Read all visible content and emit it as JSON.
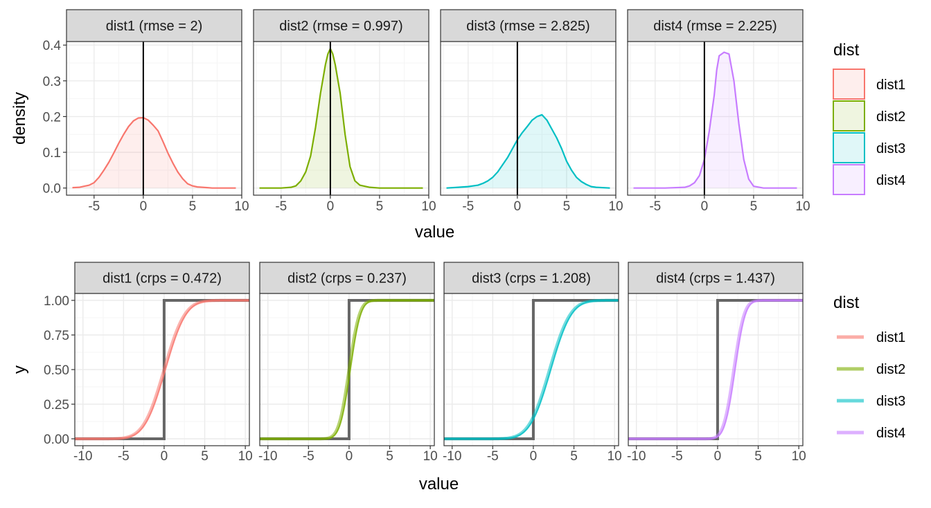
{
  "colors": {
    "dist1": "#F8766D",
    "dist2": "#7CAE00",
    "dist3": "#00BFC4",
    "dist4": "#C77CFF",
    "strip_fill": "#D9D9D9",
    "grid_major": "#EBEBEB",
    "grid_minor": "#F5F5F5",
    "panel_border": "#333333",
    "step": "#666666"
  },
  "chart_data": [
    {
      "type": "area",
      "name": "density-row",
      "title": "",
      "xlabel": "value",
      "ylabel": "density",
      "xlim": [
        -7.8,
        10
      ],
      "ylim": [
        -0.02,
        0.41
      ],
      "x_ticks": [
        -5,
        0,
        5,
        10
      ],
      "x_tick_labels": [
        "-5",
        "0",
        "5",
        "10"
      ],
      "y_ticks": [
        0.0,
        0.1,
        0.2,
        0.3,
        0.4
      ],
      "y_tick_labels": [
        "0.0",
        "0.1",
        "0.2",
        "0.3",
        "0.4"
      ],
      "reference_vline": 0,
      "legend": {
        "title": "dist",
        "position": "right",
        "entries": [
          "dist1",
          "dist2",
          "dist3",
          "dist4"
        ]
      },
      "panels": [
        {
          "series": "dist1",
          "strip": "dist1 (rmse = 2)",
          "x": [
            -7.2,
            -6.5,
            -6,
            -5.5,
            -5,
            -4.5,
            -4,
            -3.5,
            -3,
            -2.5,
            -2,
            -1.5,
            -1,
            -0.5,
            0,
            0.5,
            1,
            1.5,
            2,
            2.5,
            3,
            3.5,
            4,
            4.5,
            5,
            5.5,
            6,
            6.5,
            7,
            8,
            9.4
          ],
          "y": [
            0.001,
            0.002,
            0.005,
            0.008,
            0.015,
            0.03,
            0.05,
            0.072,
            0.098,
            0.125,
            0.15,
            0.172,
            0.188,
            0.196,
            0.197,
            0.19,
            0.176,
            0.16,
            0.13,
            0.098,
            0.07,
            0.045,
            0.026,
            0.012,
            0.006,
            0.003,
            0.002,
            0.001,
            0.0,
            0.0,
            0.0
          ]
        },
        {
          "series": "dist2",
          "strip": "dist2 (rmse = 0.997)",
          "x": [
            -7.2,
            -5,
            -4,
            -3.5,
            -3,
            -2.5,
            -2,
            -1.5,
            -1,
            -0.5,
            -0.25,
            0,
            0.25,
            0.5,
            1,
            1.5,
            2,
            2.5,
            3,
            4,
            5,
            7,
            9.4
          ],
          "y": [
            0.0,
            0.0,
            0.002,
            0.006,
            0.02,
            0.045,
            0.09,
            0.17,
            0.265,
            0.345,
            0.375,
            0.39,
            0.375,
            0.345,
            0.265,
            0.15,
            0.06,
            0.02,
            0.008,
            0.002,
            0.0,
            0.0,
            0.0
          ]
        },
        {
          "series": "dist3",
          "strip": "dist3 (rmse = 2.825)",
          "x": [
            -7.2,
            -6,
            -5,
            -4,
            -3.5,
            -3,
            -2.5,
            -2,
            -1.5,
            -1,
            -0.5,
            0,
            0.5,
            1,
            1.5,
            2,
            2.5,
            3,
            3.5,
            4,
            4.5,
            5,
            5.5,
            6,
            6.5,
            7,
            7.5,
            8,
            9.4
          ],
          "y": [
            0.0,
            0.002,
            0.004,
            0.008,
            0.013,
            0.02,
            0.03,
            0.045,
            0.065,
            0.085,
            0.11,
            0.135,
            0.155,
            0.172,
            0.19,
            0.2,
            0.205,
            0.19,
            0.165,
            0.14,
            0.11,
            0.075,
            0.05,
            0.03,
            0.018,
            0.01,
            0.004,
            0.002,
            0.0
          ]
        },
        {
          "series": "dist4",
          "strip": "dist4 (rmse = 2.225)",
          "x": [
            -7.2,
            -4,
            -2,
            -1.5,
            -1,
            -0.5,
            0,
            0.5,
            1,
            1.25,
            1.5,
            2,
            2.5,
            3,
            3.5,
            4,
            4.5,
            5,
            6,
            9.4
          ],
          "y": [
            0.0,
            0.0,
            0.002,
            0.006,
            0.015,
            0.035,
            0.08,
            0.16,
            0.26,
            0.33,
            0.37,
            0.38,
            0.375,
            0.3,
            0.18,
            0.08,
            0.025,
            0.005,
            0.0,
            0.0
          ]
        }
      ]
    },
    {
      "type": "line",
      "name": "cdf-row",
      "title": "",
      "xlabel": "value",
      "ylabel": "y",
      "xlim": [
        -11,
        10.5
      ],
      "ylim": [
        -0.05,
        1.05
      ],
      "x_ticks": [
        -10,
        -5,
        0,
        5,
        10
      ],
      "x_tick_labels": [
        "-10",
        "-5",
        "0",
        "5",
        "10"
      ],
      "y_ticks": [
        0.0,
        0.25,
        0.5,
        0.75,
        1.0
      ],
      "y_tick_labels": [
        "0.00",
        "0.25",
        "0.50",
        "0.75",
        "1.00"
      ],
      "observation_step": {
        "x": [
          -11,
          0,
          0,
          10.5
        ],
        "y": [
          0,
          0,
          1,
          1
        ]
      },
      "legend": {
        "title": "dist",
        "position": "right",
        "entries": [
          "dist1",
          "dist2",
          "dist3",
          "dist4"
        ]
      },
      "panels": [
        {
          "series": "dist1",
          "strip": "dist1 (crps = 0.472)",
          "cdf_mean": 0,
          "cdf_sd": 2
        },
        {
          "series": "dist2",
          "strip": "dist2 (crps = 0.237)",
          "cdf_mean": 0,
          "cdf_sd": 1
        },
        {
          "series": "dist3",
          "strip": "dist3 (crps = 1.208)",
          "cdf_mean": 2,
          "cdf_sd": 2
        },
        {
          "series": "dist4",
          "strip": "dist4 (crps = 1.437)",
          "cdf_mean": 2,
          "cdf_sd": 1
        }
      ]
    }
  ]
}
